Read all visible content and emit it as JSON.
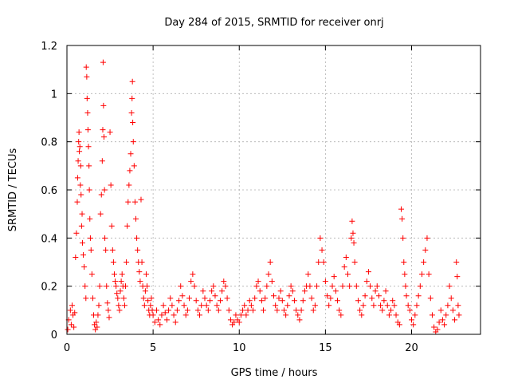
{
  "chart_data": {
    "type": "scatter",
    "title": "Day 284 of 2015, SRMTID for receiver onrj",
    "xlabel": "GPS time / hours",
    "ylabel": "SRMTID / TECUs",
    "xlim": [
      0,
      24
    ],
    "ylim": [
      0,
      1.2
    ],
    "xticks": [
      0,
      5,
      10,
      15,
      20
    ],
    "xtick_labels": [
      "0",
      "5",
      "10",
      "15",
      "20"
    ],
    "yticks": [
      0,
      0.2,
      0.4,
      0.6,
      0.8,
      1.0,
      1.2
    ],
    "ytick_labels": [
      "0",
      "0.2",
      "0.4",
      "0.6",
      "0.8",
      "1",
      "1.2"
    ],
    "grid": true,
    "marker": "+",
    "marker_color": "#ff0000",
    "series": [
      {
        "name": "SRMTID",
        "points": [
          [
            0.05,
            0.02
          ],
          [
            0.1,
            0.06
          ],
          [
            0.2,
            0.1
          ],
          [
            0.25,
            0.04
          ],
          [
            0.3,
            0.12
          ],
          [
            0.35,
            0.08
          ],
          [
            0.4,
            0.03
          ],
          [
            0.45,
            0.09
          ],
          [
            0.5,
            0.32
          ],
          [
            0.55,
            0.42
          ],
          [
            0.6,
            0.55
          ],
          [
            0.62,
            0.65
          ],
          [
            0.65,
            0.72
          ],
          [
            0.68,
            0.8
          ],
          [
            0.7,
            0.84
          ],
          [
            0.72,
            0.76
          ],
          [
            0.75,
            0.78
          ],
          [
            0.78,
            0.62
          ],
          [
            0.8,
            0.7
          ],
          [
            0.82,
            0.58
          ],
          [
            0.85,
            0.45
          ],
          [
            0.88,
            0.5
          ],
          [
            0.9,
            0.38
          ],
          [
            0.95,
            0.33
          ],
          [
            1.0,
            0.28
          ],
          [
            1.05,
            0.2
          ],
          [
            1.1,
            0.15
          ],
          [
            1.12,
            1.11
          ],
          [
            1.15,
            1.07
          ],
          [
            1.17,
            0.98
          ],
          [
            1.2,
            0.92
          ],
          [
            1.22,
            0.85
          ],
          [
            1.25,
            0.78
          ],
          [
            1.28,
            0.7
          ],
          [
            1.3,
            0.6
          ],
          [
            1.33,
            0.48
          ],
          [
            1.36,
            0.4
          ],
          [
            1.4,
            0.35
          ],
          [
            1.45,
            0.25
          ],
          [
            1.5,
            0.15
          ],
          [
            1.55,
            0.08
          ],
          [
            1.6,
            0.04
          ],
          [
            1.65,
            0.02
          ],
          [
            1.7,
            0.05
          ],
          [
            1.75,
            0.03
          ],
          [
            1.8,
            0.08
          ],
          [
            1.85,
            0.12
          ],
          [
            1.9,
            0.2
          ],
          [
            1.95,
            0.5
          ],
          [
            2.0,
            0.58
          ],
          [
            2.05,
            0.72
          ],
          [
            2.08,
            0.85
          ],
          [
            2.1,
            1.13
          ],
          [
            2.12,
            0.95
          ],
          [
            2.15,
            0.82
          ],
          [
            2.18,
            0.6
          ],
          [
            2.2,
            0.4
          ],
          [
            2.25,
            0.35
          ],
          [
            2.3,
            0.2
          ],
          [
            2.35,
            0.13
          ],
          [
            2.4,
            0.1
          ],
          [
            2.45,
            0.07
          ],
          [
            2.5,
            0.84
          ],
          [
            2.55,
            0.62
          ],
          [
            2.6,
            0.45
          ],
          [
            2.65,
            0.35
          ],
          [
            2.7,
            0.3
          ],
          [
            2.75,
            0.25
          ],
          [
            2.8,
            0.22
          ],
          [
            2.85,
            0.2
          ],
          [
            2.9,
            0.17
          ],
          [
            2.95,
            0.15
          ],
          [
            3.0,
            0.12
          ],
          [
            3.05,
            0.1
          ],
          [
            3.1,
            0.18
          ],
          [
            3.15,
            0.22
          ],
          [
            3.2,
            0.25
          ],
          [
            3.25,
            0.2
          ],
          [
            3.3,
            0.15
          ],
          [
            3.35,
            0.12
          ],
          [
            3.4,
            0.2
          ],
          [
            3.45,
            0.3
          ],
          [
            3.5,
            0.45
          ],
          [
            3.55,
            0.55
          ],
          [
            3.6,
            0.62
          ],
          [
            3.65,
            0.68
          ],
          [
            3.7,
            0.75
          ],
          [
            3.75,
            0.92
          ],
          [
            3.78,
            0.98
          ],
          [
            3.8,
            1.05
          ],
          [
            3.82,
            0.88
          ],
          [
            3.85,
            0.8
          ],
          [
            3.9,
            0.7
          ],
          [
            3.95,
            0.55
          ],
          [
            4.0,
            0.48
          ],
          [
            4.05,
            0.4
          ],
          [
            4.1,
            0.35
          ],
          [
            4.15,
            0.3
          ],
          [
            4.2,
            0.26
          ],
          [
            4.25,
            0.22
          ],
          [
            4.3,
            0.56
          ],
          [
            4.35,
            0.3
          ],
          [
            4.4,
            0.2
          ],
          [
            4.45,
            0.15
          ],
          [
            4.5,
            0.12
          ],
          [
            4.55,
            0.18
          ],
          [
            4.6,
            0.25
          ],
          [
            4.65,
            0.2
          ],
          [
            4.7,
            0.14
          ],
          [
            4.75,
            0.1
          ],
          [
            4.8,
            0.08
          ],
          [
            4.85,
            0.12
          ],
          [
            4.9,
            0.15
          ],
          [
            4.95,
            0.1
          ],
          [
            5.0,
            0.08
          ],
          [
            5.1,
            0.05
          ],
          [
            5.2,
            0.1
          ],
          [
            5.3,
            0.06
          ],
          [
            5.4,
            0.04
          ],
          [
            5.5,
            0.08
          ],
          [
            5.6,
            0.12
          ],
          [
            5.7,
            0.09
          ],
          [
            5.8,
            0.06
          ],
          [
            5.9,
            0.1
          ],
          [
            6.0,
            0.15
          ],
          [
            6.1,
            0.12
          ],
          [
            6.2,
            0.08
          ],
          [
            6.3,
            0.05
          ],
          [
            6.4,
            0.1
          ],
          [
            6.5,
            0.14
          ],
          [
            6.6,
            0.2
          ],
          [
            6.7,
            0.16
          ],
          [
            6.8,
            0.12
          ],
          [
            6.9,
            0.08
          ],
          [
            7.0,
            0.1
          ],
          [
            7.1,
            0.15
          ],
          [
            7.2,
            0.22
          ],
          [
            7.3,
            0.25
          ],
          [
            7.4,
            0.2
          ],
          [
            7.5,
            0.14
          ],
          [
            7.6,
            0.1
          ],
          [
            7.7,
            0.08
          ],
          [
            7.8,
            0.12
          ],
          [
            7.9,
            0.18
          ],
          [
            8.0,
            0.15
          ],
          [
            8.1,
            0.12
          ],
          [
            8.2,
            0.1
          ],
          [
            8.3,
            0.14
          ],
          [
            8.4,
            0.18
          ],
          [
            8.5,
            0.2
          ],
          [
            8.6,
            0.16
          ],
          [
            8.7,
            0.12
          ],
          [
            8.8,
            0.1
          ],
          [
            8.9,
            0.14
          ],
          [
            9.0,
            0.18
          ],
          [
            9.1,
            0.22
          ],
          [
            9.2,
            0.2
          ],
          [
            9.3,
            0.15
          ],
          [
            9.4,
            0.1
          ],
          [
            9.5,
            0.06
          ],
          [
            9.6,
            0.04
          ],
          [
            9.7,
            0.05
          ],
          [
            9.8,
            0.08
          ],
          [
            9.9,
            0.06
          ],
          [
            10.0,
            0.05
          ],
          [
            10.1,
            0.08
          ],
          [
            10.2,
            0.1
          ],
          [
            10.3,
            0.12
          ],
          [
            10.4,
            0.08
          ],
          [
            10.5,
            0.1
          ],
          [
            10.6,
            0.14
          ],
          [
            10.7,
            0.12
          ],
          [
            10.8,
            0.1
          ],
          [
            10.9,
            0.15
          ],
          [
            11.0,
            0.2
          ],
          [
            11.1,
            0.22
          ],
          [
            11.2,
            0.18
          ],
          [
            11.3,
            0.14
          ],
          [
            11.4,
            0.1
          ],
          [
            11.5,
            0.15
          ],
          [
            11.6,
            0.2
          ],
          [
            11.7,
            0.25
          ],
          [
            11.8,
            0.3
          ],
          [
            11.9,
            0.22
          ],
          [
            12.0,
            0.16
          ],
          [
            12.1,
            0.12
          ],
          [
            12.2,
            0.1
          ],
          [
            12.3,
            0.15
          ],
          [
            12.4,
            0.18
          ],
          [
            12.5,
            0.14
          ],
          [
            12.6,
            0.1
          ],
          [
            12.7,
            0.08
          ],
          [
            12.8,
            0.12
          ],
          [
            12.9,
            0.16
          ],
          [
            13.0,
            0.2
          ],
          [
            13.1,
            0.18
          ],
          [
            13.2,
            0.14
          ],
          [
            13.3,
            0.1
          ],
          [
            13.4,
            0.08
          ],
          [
            13.5,
            0.06
          ],
          [
            13.6,
            0.1
          ],
          [
            13.7,
            0.14
          ],
          [
            13.8,
            0.18
          ],
          [
            13.9,
            0.2
          ],
          [
            14.0,
            0.25
          ],
          [
            14.1,
            0.2
          ],
          [
            14.2,
            0.15
          ],
          [
            14.3,
            0.1
          ],
          [
            14.4,
            0.12
          ],
          [
            14.5,
            0.2
          ],
          [
            14.6,
            0.3
          ],
          [
            14.7,
            0.4
          ],
          [
            14.8,
            0.35
          ],
          [
            14.9,
            0.3
          ],
          [
            15.0,
            0.22
          ],
          [
            15.1,
            0.16
          ],
          [
            15.2,
            0.12
          ],
          [
            15.3,
            0.15
          ],
          [
            15.4,
            0.2
          ],
          [
            15.5,
            0.24
          ],
          [
            15.6,
            0.18
          ],
          [
            15.7,
            0.14
          ],
          [
            15.8,
            0.1
          ],
          [
            15.9,
            0.08
          ],
          [
            16.0,
            0.2
          ],
          [
            16.1,
            0.28
          ],
          [
            16.2,
            0.32
          ],
          [
            16.3,
            0.25
          ],
          [
            16.4,
            0.2
          ],
          [
            16.5,
            0.4
          ],
          [
            16.55,
            0.47
          ],
          [
            16.6,
            0.42
          ],
          [
            16.65,
            0.38
          ],
          [
            16.7,
            0.3
          ],
          [
            16.8,
            0.2
          ],
          [
            16.9,
            0.14
          ],
          [
            17.0,
            0.1
          ],
          [
            17.1,
            0.08
          ],
          [
            17.2,
            0.12
          ],
          [
            17.3,
            0.16
          ],
          [
            17.4,
            0.22
          ],
          [
            17.5,
            0.26
          ],
          [
            17.6,
            0.2
          ],
          [
            17.7,
            0.15
          ],
          [
            17.8,
            0.12
          ],
          [
            17.9,
            0.18
          ],
          [
            18.0,
            0.2
          ],
          [
            18.1,
            0.16
          ],
          [
            18.2,
            0.12
          ],
          [
            18.3,
            0.1
          ],
          [
            18.4,
            0.14
          ],
          [
            18.5,
            0.18
          ],
          [
            18.6,
            0.12
          ],
          [
            18.7,
            0.08
          ],
          [
            18.8,
            0.1
          ],
          [
            18.9,
            0.14
          ],
          [
            19.0,
            0.12
          ],
          [
            19.1,
            0.08
          ],
          [
            19.2,
            0.05
          ],
          [
            19.3,
            0.04
          ],
          [
            19.4,
            0.52
          ],
          [
            19.45,
            0.48
          ],
          [
            19.5,
            0.4
          ],
          [
            19.55,
            0.3
          ],
          [
            19.6,
            0.25
          ],
          [
            19.65,
            0.2
          ],
          [
            19.7,
            0.16
          ],
          [
            19.8,
            0.12
          ],
          [
            19.9,
            0.1
          ],
          [
            20.0,
            0.06
          ],
          [
            20.1,
            0.04
          ],
          [
            20.2,
            0.08
          ],
          [
            20.3,
            0.12
          ],
          [
            20.4,
            0.16
          ],
          [
            20.5,
            0.2
          ],
          [
            20.6,
            0.25
          ],
          [
            20.7,
            0.3
          ],
          [
            20.8,
            0.35
          ],
          [
            20.9,
            0.4
          ],
          [
            21.0,
            0.25
          ],
          [
            21.1,
            0.15
          ],
          [
            21.2,
            0.08
          ],
          [
            21.3,
            0.03
          ],
          [
            21.4,
            0.01
          ],
          [
            21.5,
            0.02
          ],
          [
            21.6,
            0.05
          ],
          [
            21.7,
            0.1
          ],
          [
            21.8,
            0.06
          ],
          [
            21.9,
            0.04
          ],
          [
            22.0,
            0.08
          ],
          [
            22.1,
            0.12
          ],
          [
            22.2,
            0.2
          ],
          [
            22.3,
            0.15
          ],
          [
            22.4,
            0.1
          ],
          [
            22.5,
            0.06
          ],
          [
            22.6,
            0.3
          ],
          [
            22.65,
            0.24
          ],
          [
            22.7,
            0.12
          ],
          [
            22.75,
            0.08
          ]
        ]
      }
    ]
  }
}
